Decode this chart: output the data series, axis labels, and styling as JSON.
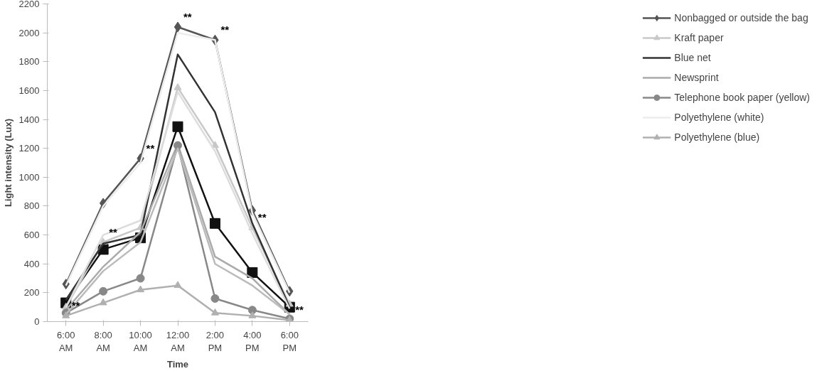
{
  "chart_data": {
    "type": "line",
    "xlabel": "Time",
    "ylabel": "Light intensity (Lux)",
    "categories": [
      "6:00\nAM",
      "8:00\nAM",
      "10:00\nAM",
      "12:00\nAM",
      "2:00\nPM",
      "4:00\nPM",
      "6:00\nPM"
    ],
    "ylim": [
      0,
      2200
    ],
    "yticks": [
      0,
      200,
      400,
      600,
      800,
      1000,
      1200,
      1400,
      1600,
      1800,
      2000,
      2200
    ],
    "grid": false,
    "legend": "right",
    "series": [
      {
        "name": "Nonbagged or outside the bag",
        "color": "#555555",
        "marker": "diamond",
        "values": [
          260,
          820,
          1130,
          2040,
          1950,
          770,
          210
        ]
      },
      {
        "color": "#111111",
        "marker": "square",
        "values": [
          130,
          500,
          580,
          1350,
          680,
          340,
          100
        ]
      },
      {
        "name": "Kraft paper",
        "color": "#c8c8c8",
        "marker": "triangle",
        "values": [
          100,
          550,
          650,
          1620,
          1220,
          650,
          120
        ]
      },
      {
        "name": "Blue net",
        "color": "#333333",
        "marker": "none",
        "values": [
          150,
          540,
          600,
          1850,
          1450,
          680,
          100
        ]
      },
      {
        "name": "Newsprint",
        "color": "#aaaaaa",
        "marker": "none",
        "values": [
          80,
          380,
          620,
          1230,
          450,
          300,
          50
        ]
      },
      {
        "name": "Telephone book paper (yellow)",
        "color": "#888888",
        "marker": "circle",
        "values": [
          60,
          210,
          300,
          1220,
          160,
          80,
          20
        ]
      },
      {
        "color": "#dddddd",
        "marker": "none",
        "values": [
          100,
          600,
          700,
          1590,
          1180,
          610,
          90
        ]
      },
      {
        "color": "#bbbbbb",
        "marker": "none",
        "values": [
          50,
          350,
          550,
          1200,
          400,
          250,
          50
        ]
      },
      {
        "name": "Polyethylene (white)",
        "color": "#ececec",
        "marker": "none",
        "values": [
          250,
          800,
          1100,
          2000,
          1950,
          750,
          200
        ]
      },
      {
        "name": "Polyethylene (blue)",
        "color": "#b0b0b0",
        "marker": "triangle",
        "values": [
          40,
          130,
          220,
          250,
          60,
          40,
          10
        ]
      }
    ],
    "annotations": [
      {
        "text": "**",
        "x": "6:00\nAM",
        "y": 40
      },
      {
        "text": "**",
        "x": "8:00\nAM",
        "y": 550
      },
      {
        "text": "**",
        "x": "10:00\nAM",
        "y": 1130
      },
      {
        "text": "**",
        "x": "12:00\nAM",
        "y": 2040
      },
      {
        "text": "**",
        "x": "2:00\nPM",
        "y": 1950
      },
      {
        "text": "**",
        "x": "4:00\nPM",
        "y": 650
      },
      {
        "text": "**",
        "x": "6:00\nPM",
        "y": 10
      }
    ]
  }
}
